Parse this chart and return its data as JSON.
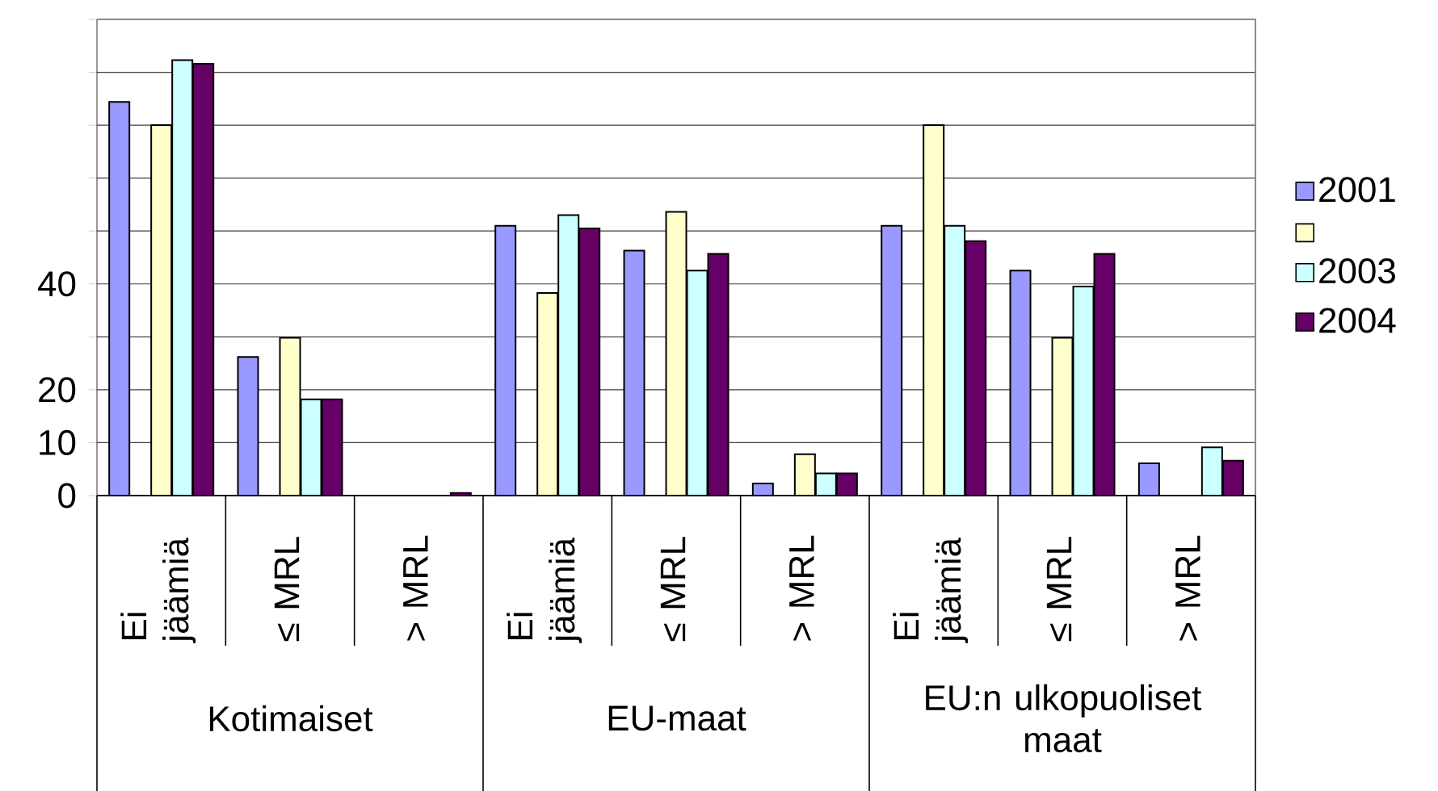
{
  "chart_data": {
    "type": "bar",
    "categories": [
      "Ei jäämiä",
      "≤ MRL",
      "> MRL",
      "Ei jäämiä",
      "≤ MRL",
      "> MRL",
      "Ei jäämiä",
      "≤ MRL",
      "> MRL"
    ],
    "series": [
      {
        "name": "2001",
        "color": "#9999ff",
        "values": [
          74.4,
          26.2,
          null,
          51.0,
          46.3,
          2.3,
          51.0,
          42.5,
          6.1
        ]
      },
      {
        "color": "#ffffcc",
        "values": [
          70.0,
          29.8,
          null,
          38.3,
          53.6,
          7.8,
          70.0,
          29.8,
          null
        ]
      },
      {
        "name": "2003",
        "color": "#ccffff",
        "values": [
          82.3,
          18.2,
          null,
          53.0,
          42.5,
          4.2,
          51.0,
          39.5,
          9.1
        ]
      },
      {
        "name": "2004",
        "color": "#660066",
        "values": [
          81.6,
          18.2,
          0.5,
          50.5,
          45.7,
          4.2,
          48.1,
          45.7,
          6.6
        ]
      }
    ],
    "ylim": [
      0,
      90
    ],
    "yticks": [
      0,
      10,
      20,
      {
        "value": 30,
        "label": null
      },
      40,
      {
        "value": 50,
        "label": null
      },
      {
        "value": 60,
        "label": null
      },
      {
        "value": 70,
        "label": null
      },
      {
        "value": 80,
        "label": null
      },
      {
        "value": 90,
        "label": null
      }
    ],
    "grid": "y",
    "legend": "right",
    "annotations": [
      "Kotimaiset",
      "EU-maat",
      "EU:n ulkopuoliset maat"
    ]
  }
}
